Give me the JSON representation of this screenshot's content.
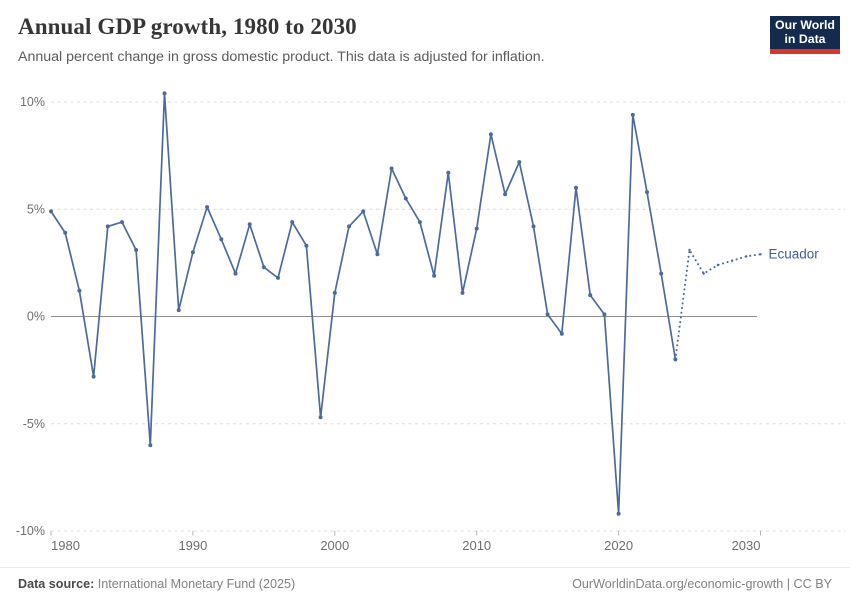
{
  "header": {
    "title": "Annual GDP growth, 1980 to 2030",
    "subtitle": "Annual percent change in gross domestic product. This data is adjusted for inflation.",
    "logo": {
      "line1": "Our World",
      "line2": "in Data"
    }
  },
  "footer": {
    "source_label": "Data source:",
    "source_value": "International Monetary Fund (2025)",
    "license": "OurWorldinData.org/economic-growth | CC BY"
  },
  "colors": {
    "line": "#4C6A9C",
    "entity_label": "#3F5E94",
    "grid": "#dcdcdc",
    "zero_line": "#8f8f8f",
    "tick_mark": "#b3b3b3",
    "logo_bg": "#142b4d",
    "logo_red": "#d7382e"
  },
  "chart_data": {
    "type": "line",
    "title": "Annual GDP growth, 1980 to 2030",
    "xlabel": "",
    "ylabel": "",
    "unit": "%",
    "entity": "Ecuador",
    "x_range": [
      1980,
      2030
    ],
    "ylim": [
      -10,
      10
    ],
    "grid": "dashed",
    "legend_position": "end-of-line-label",
    "y_ticks": [
      10,
      5,
      0,
      -5,
      -10
    ],
    "y_tick_labels": [
      "10%",
      "5%",
      "0%",
      "-5%",
      "-10%"
    ],
    "x_ticks": [
      1980,
      1990,
      2000,
      2010,
      2020,
      2030
    ],
    "x_tick_labels": [
      "1980",
      "1990",
      "2000",
      "2010",
      "2020",
      "2030"
    ],
    "series": [
      {
        "name": "Ecuador",
        "style": "solid",
        "x": [
          1980,
          1981,
          1982,
          1983,
          1984,
          1985,
          1986,
          1987,
          1988,
          1989,
          1990,
          1991,
          1992,
          1993,
          1994,
          1995,
          1996,
          1997,
          1998,
          1999,
          2000,
          2001,
          2002,
          2003,
          2004,
          2005,
          2006,
          2007,
          2008,
          2009,
          2010,
          2011,
          2012,
          2013,
          2014,
          2015,
          2016,
          2017,
          2018,
          2019,
          2020,
          2021,
          2022,
          2023,
          2024
        ],
        "values": [
          4.9,
          3.9,
          1.2,
          -2.8,
          4.2,
          4.4,
          3.1,
          -6.0,
          10.4,
          0.3,
          3.0,
          5.1,
          3.6,
          2.0,
          4.3,
          2.3,
          1.8,
          4.4,
          3.3,
          -4.7,
          1.1,
          4.2,
          4.9,
          2.9,
          6.9,
          5.5,
          4.4,
          1.9,
          6.7,
          1.1,
          4.1,
          8.5,
          5.7,
          7.2,
          4.2,
          0.1,
          -0.8,
          6.0,
          1.0,
          0.1,
          -9.2,
          9.4,
          5.8,
          2.0,
          -2.0
        ]
      },
      {
        "name": "Ecuador (projection)",
        "style": "dotted",
        "x": [
          2024,
          2025,
          2026,
          2027,
          2028,
          2029,
          2030
        ],
        "values": [
          -2.0,
          3.1,
          2.0,
          2.4,
          2.6,
          2.8,
          2.9
        ]
      }
    ]
  }
}
